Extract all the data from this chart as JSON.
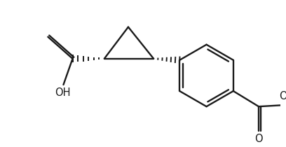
{
  "background": "#ffffff",
  "line_color": "#1a1a1a",
  "lw": 1.7,
  "figsize": [
    4.08,
    2.1
  ],
  "dpi": 100,
  "xlim": [
    10,
    408
  ],
  "ylim": [
    5,
    210
  ]
}
